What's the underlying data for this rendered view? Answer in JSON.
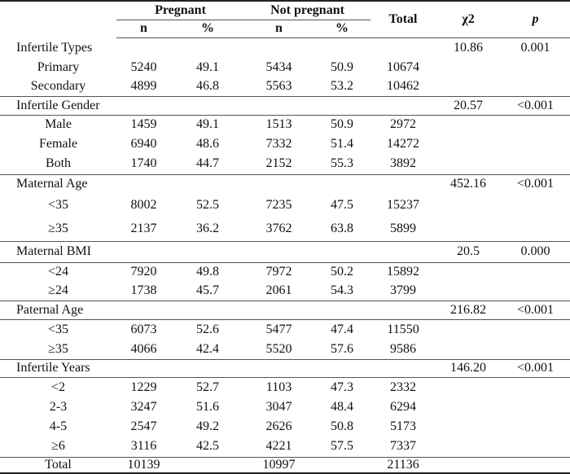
{
  "header": {
    "pregnant": "Pregnant",
    "not_pregnant": "Not pregnant",
    "total": "Total",
    "chi2": "χ2",
    "p": "p",
    "n": "n",
    "pct": "%"
  },
  "rows": [
    {
      "type": "section",
      "label": "Infertile Types",
      "chi2": "10.86",
      "p": "0.001",
      "h": 25,
      "lt": false
    },
    {
      "type": "item",
      "label": "Primary",
      "cells": [
        "5240",
        "49.1",
        "5434",
        "50.9",
        "10674"
      ],
      "h": 24
    },
    {
      "type": "item",
      "label": "Secondary",
      "cells": [
        "4899",
        "46.8",
        "5563",
        "53.2",
        "10462"
      ],
      "h": 23
    },
    {
      "type": "section",
      "label": "Infertile Gender",
      "chi2": "20.57",
      "p": "<0.001",
      "h": 23,
      "lt": true
    },
    {
      "type": "item",
      "label": "Male",
      "cells": [
        "1459",
        "49.1",
        "1513",
        "50.9",
        "2972"
      ],
      "h": 24,
      "lt": true
    },
    {
      "type": "item",
      "label": "Female",
      "cells": [
        "6940",
        "48.6",
        "7332",
        "51.4",
        "14272"
      ],
      "h": 24
    },
    {
      "type": "item",
      "label": "Both",
      "cells": [
        "1740",
        "44.7",
        "2152",
        "55.3",
        "3892"
      ],
      "h": 25
    },
    {
      "type": "section",
      "label": "Maternal Age",
      "chi2": "452.16",
      "p": "<0.001",
      "h": 24,
      "lt": true
    },
    {
      "type": "item",
      "label": "<35",
      "cells": [
        "8002",
        "52.5",
        "7235",
        "47.5",
        "15237"
      ],
      "h": 28
    },
    {
      "type": "item",
      "label": "≥35",
      "cells": [
        "2137",
        "36.2",
        "3762",
        "63.8",
        "5899"
      ],
      "h": 30
    },
    {
      "type": "section",
      "label": "Maternal BMI",
      "chi2": "20.5",
      "p": "0.000",
      "h": 26,
      "lt": true
    },
    {
      "type": "item",
      "label": "<24",
      "cells": [
        "7920",
        "49.8",
        "7972",
        "50.2",
        "15892"
      ],
      "h": 24,
      "lt": true
    },
    {
      "type": "item",
      "label": "≥24",
      "cells": [
        "1738",
        "45.7",
        "2061",
        "54.3",
        "3799"
      ],
      "h": 23
    },
    {
      "type": "section",
      "label": "Paternal Age",
      "chi2": "216.82",
      "p": "<0.001",
      "h": 23,
      "lt": true
    },
    {
      "type": "item",
      "label": "<35",
      "cells": [
        "6073",
        "52.6",
        "5477",
        "47.4",
        "11550"
      ],
      "h": 26,
      "lt": true
    },
    {
      "type": "item",
      "label": "≥35",
      "cells": [
        "4066",
        "42.4",
        "5520",
        "57.6",
        "9586"
      ],
      "h": 23
    },
    {
      "type": "section",
      "label": "Infertile Years",
      "chi2": "146.20",
      "p": "<0.001",
      "h": 22,
      "lt": true
    },
    {
      "type": "item",
      "label": "<2",
      "cells": [
        "1229",
        "52.7",
        "1103",
        "47.3",
        "2332"
      ],
      "h": 25,
      "lt": true
    },
    {
      "type": "item",
      "label": "2-3",
      "cells": [
        "3247",
        "51.6",
        "3047",
        "48.4",
        "6294"
      ],
      "h": 24
    },
    {
      "type": "item",
      "label": "4-5",
      "cells": [
        "2547",
        "49.2",
        "2626",
        "50.8",
        "5173"
      ],
      "h": 24
    },
    {
      "type": "item",
      "label": "≥6",
      "cells": [
        "3116",
        "42.5",
        "4221",
        "57.5",
        "7337"
      ],
      "h": 25
    },
    {
      "type": "item",
      "label": "Total",
      "cells": [
        "10139",
        "",
        "10997",
        "",
        "21136"
      ],
      "h": 19,
      "lt": true
    }
  ]
}
